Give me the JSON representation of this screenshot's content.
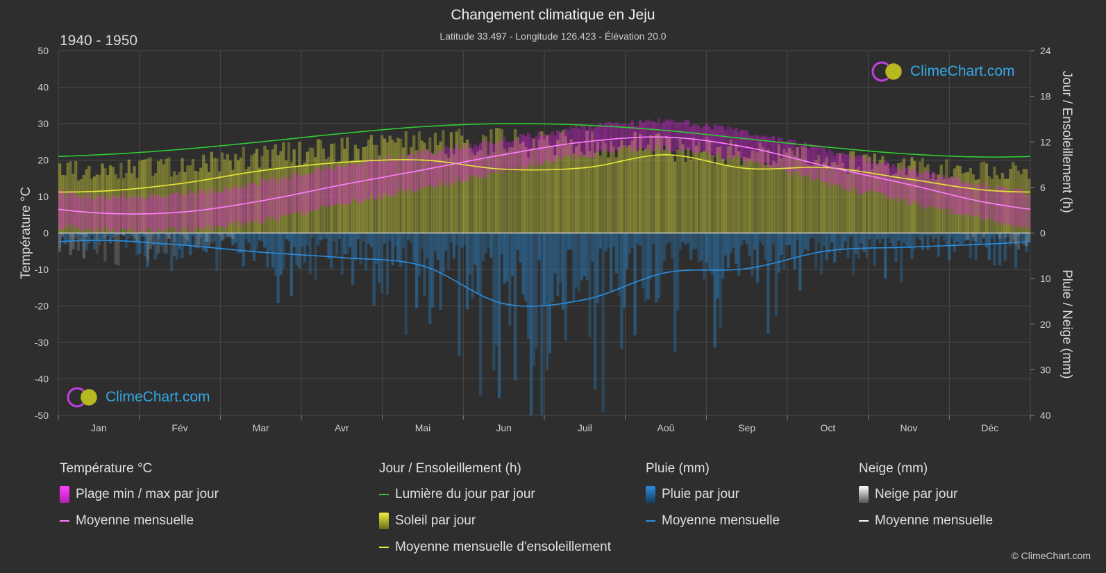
{
  "title": "Changement climatique en Jeju",
  "subtitle": "Latitude 33.497 - Longitude 126.423 - Élévation 20.0",
  "period": "1940 - 1950",
  "brand": "ClimeChart.com",
  "copyright": "© ClimeChart.com",
  "colors": {
    "background": "#2e2e2e",
    "temp_range": "#e020e0",
    "temp_mean": "#ff80ff",
    "daylight": "#33cc33",
    "sunshine": "#c8c83a",
    "sunshine_mean": "#e8e83a",
    "rain": "#2a7fc0",
    "rain_mean": "#2a8ee0",
    "snow": "#bbbbbb",
    "snow_mean": "#ffffff"
  },
  "legend": {
    "temperature": {
      "title": "Température °C",
      "range": "Plage min / max par jour",
      "mean": "Moyenne mensuelle"
    },
    "sun": {
      "title": "Jour / Ensoleillement (h)",
      "daylight": "Lumière du jour par jour",
      "sunshine": "Soleil par jour",
      "sunshine_mean": "Moyenne mensuelle d'ensoleillement"
    },
    "rain": {
      "title": "Pluie (mm)",
      "daily": "Pluie par jour",
      "mean": "Moyenne mensuelle"
    },
    "snow": {
      "title": "Neige (mm)",
      "daily": "Neige par jour",
      "mean": "Moyenne mensuelle"
    }
  },
  "chart_data": {
    "type": "line",
    "categories": [
      "Jan",
      "Fév",
      "Mar",
      "Avr",
      "Mai",
      "Jun",
      "Juil",
      "Aoû",
      "Sep",
      "Oct",
      "Nov",
      "Déc"
    ],
    "axes": {
      "left": {
        "label": "Température °C",
        "range": [
          -50,
          50
        ],
        "ticks": [
          50,
          40,
          30,
          20,
          10,
          0,
          -10,
          -20,
          -30,
          -40,
          -50
        ]
      },
      "right_top": {
        "label": "Jour / Ensoleillement (h)",
        "range": [
          0,
          24
        ],
        "ticks": [
          24,
          18,
          12,
          6,
          0
        ]
      },
      "right_bottom": {
        "label": "Pluie / Neige (mm)",
        "range": [
          0,
          40
        ],
        "ticks": [
          0,
          10,
          20,
          30,
          40
        ]
      }
    },
    "grid": true,
    "series": [
      {
        "name": "Moyenne mensuelle",
        "axis": "temperature",
        "values": [
          5.5,
          5.7,
          8.8,
          13.2,
          17.3,
          21.5,
          25.0,
          26.3,
          23.5,
          18.2,
          13.3,
          8.2
        ]
      },
      {
        "name": "Plage min / max par jour",
        "axis": "temperature",
        "min": [
          2,
          2,
          4.5,
          9,
          13.5,
          18,
          22.5,
          24,
          20.5,
          14.5,
          9.5,
          4.5
        ],
        "max": [
          9,
          9.5,
          13,
          17.5,
          21,
          24.5,
          28,
          29.5,
          26.5,
          21.5,
          16.5,
          11.5
        ]
      },
      {
        "name": "Lumière du jour par jour",
        "axis": "hours",
        "values": [
          10.3,
          11.0,
          12.0,
          13.1,
          14.0,
          14.4,
          14.2,
          13.5,
          12.4,
          11.3,
          10.4,
          10.0
        ]
      },
      {
        "name": "Soleil par jour",
        "axis": "hours",
        "values": [
          9.2,
          10.0,
          11.2,
          12.2,
          13.0,
          13.2,
          13.0,
          12.6,
          11.6,
          10.6,
          9.6,
          9.0
        ]
      },
      {
        "name": "Moyenne mensuelle d'ensoleillement",
        "axis": "hours",
        "values": [
          5.5,
          6.5,
          8.2,
          9.3,
          9.6,
          8.4,
          8.6,
          10.3,
          8.5,
          8.6,
          7.1,
          5.6
        ]
      },
      {
        "name": "Pluie par jour",
        "axis": "precip",
        "values": [
          1.6,
          2.6,
          4.2,
          5.4,
          7.2,
          15.5,
          14.6,
          8.7,
          7.8,
          3.9,
          3.1,
          2.4
        ]
      },
      {
        "name": "Moyenne mensuelle",
        "axis": "precip",
        "values": [
          1.6,
          2.6,
          4.2,
          5.4,
          7.2,
          15.5,
          14.6,
          8.7,
          7.8,
          3.9,
          3.1,
          2.4
        ]
      },
      {
        "name": "Neige par jour",
        "axis": "precip",
        "values": [
          0.3,
          0.2,
          0,
          0,
          0,
          0,
          0,
          0,
          0,
          0,
          0,
          0.1
        ]
      }
    ]
  }
}
